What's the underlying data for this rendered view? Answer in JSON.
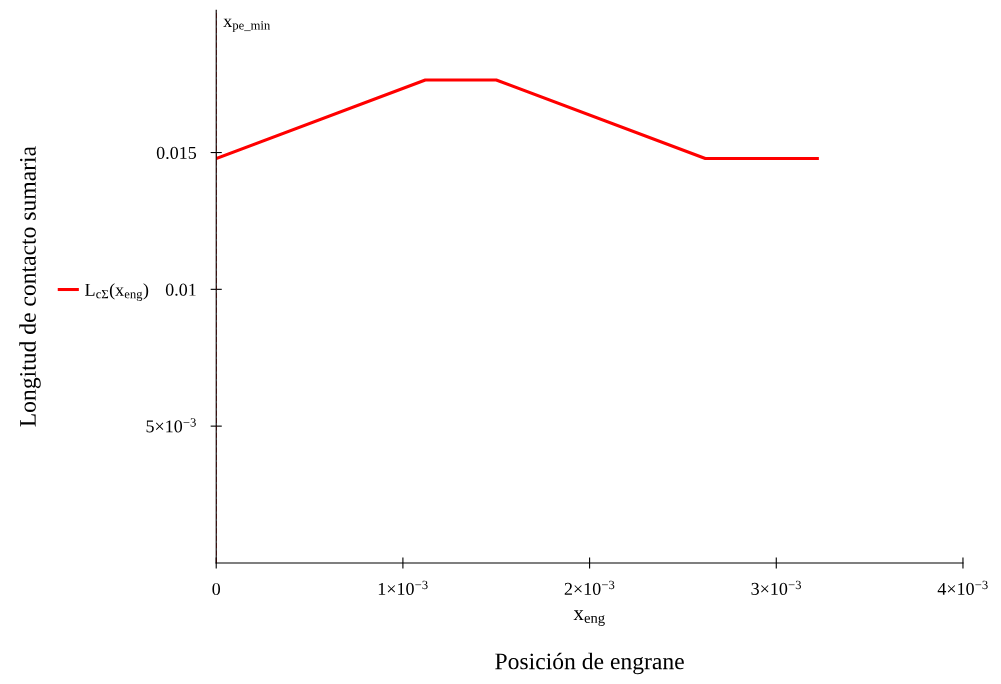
{
  "chart_data": {
    "type": "line",
    "ylabel": "Longitud de contacto sumaria",
    "xlabel": "x$_{eng}$",
    "annotations": [
      "Posición de engrane"
    ],
    "x": [
      0,
      0.00112,
      0.0015,
      0.00262,
      0.00322
    ],
    "series": [
      {
        "name": "L$_{cΣ}$(x$_{eng}$)",
        "color": "#ff0000",
        "values": [
          0.01478,
          0.01765,
          0.01765,
          0.01478,
          0.01478
        ]
      }
    ],
    "xlim": [
      0,
      0.004
    ],
    "ylim": [
      0,
      0.0202
    ],
    "xticks": [
      0,
      {
        "value": 0.001,
        "label": "1×10$^{−3}$"
      },
      {
        "value": 0.002,
        "label": "2×10$^{−3}$"
      },
      {
        "value": 0.003,
        "label": "3×10$^{−3}$"
      },
      {
        "value": 0.004,
        "label": "4×10$^{−3}$"
      }
    ],
    "yticks": [
      {
        "value": 0.005,
        "label": "5×10$^{−3}$"
      },
      0.01,
      0.015
    ],
    "ref_lines": [
      {
        "axis": "x",
        "value": 0,
        "label": "x$_{pe_min}$",
        "color": "#ff0000",
        "line_style": "dashed"
      }
    ],
    "legend": "left",
    "grid": false,
    "line_style": "solid",
    "marker": "none"
  }
}
